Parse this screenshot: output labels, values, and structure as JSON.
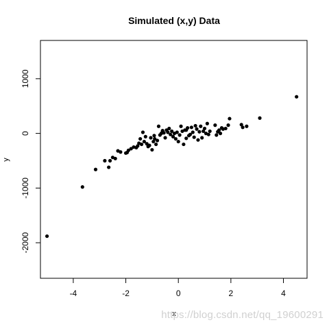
{
  "chart_data": {
    "type": "scatter",
    "title": "Simulated (x,y) Data",
    "xlabel": "x",
    "ylabel": "y",
    "xlim": [
      -5.25,
      4.9
    ],
    "ylim": [
      -2650,
      1700
    ],
    "x_ticks": [
      -4,
      -2,
      0,
      2,
      4
    ],
    "y_ticks": [
      -2000,
      -1000,
      0,
      1000
    ],
    "grid": false,
    "point_color": "#000000",
    "points": [
      [
        -5.0,
        -1880
      ],
      [
        -3.65,
        -980
      ],
      [
        -3.15,
        -660
      ],
      [
        -2.8,
        -500
      ],
      [
        -2.65,
        -620
      ],
      [
        -2.6,
        -500
      ],
      [
        -2.5,
        -440
      ],
      [
        -2.4,
        -460
      ],
      [
        -2.3,
        -320
      ],
      [
        -2.2,
        -340
      ],
      [
        -2.0,
        -360
      ],
      [
        -1.9,
        -310
      ],
      [
        -1.8,
        -280
      ],
      [
        -1.7,
        -250
      ],
      [
        -1.6,
        -260
      ],
      [
        -1.5,
        -180
      ],
      [
        -1.45,
        -100
      ],
      [
        -1.4,
        -200
      ],
      [
        -1.35,
        20
      ],
      [
        -1.3,
        -150
      ],
      [
        -1.25,
        -60
      ],
      [
        -1.2,
        -190
      ],
      [
        -1.15,
        -240
      ],
      [
        -1.1,
        -220
      ],
      [
        -1.05,
        -80
      ],
      [
        -1.0,
        -300
      ],
      [
        -0.95,
        -150
      ],
      [
        -0.92,
        -40
      ],
      [
        -0.9,
        -100
      ],
      [
        -0.85,
        -200
      ],
      [
        -0.8,
        -130
      ],
      [
        -0.75,
        130
      ],
      [
        -0.7,
        -30
      ],
      [
        -0.65,
        0
      ],
      [
        -0.6,
        30
      ],
      [
        -0.55,
        10
      ],
      [
        -0.5,
        -80
      ],
      [
        -0.45,
        60
      ],
      [
        -0.4,
        20
      ],
      [
        -0.35,
        90
      ],
      [
        -0.3,
        -20
      ],
      [
        -0.25,
        40
      ],
      [
        -0.2,
        -60
      ],
      [
        -0.15,
        0
      ],
      [
        -0.1,
        -100
      ],
      [
        -0.05,
        20
      ],
      [
        0.0,
        -150
      ],
      [
        0.05,
        -30
      ],
      [
        0.1,
        130
      ],
      [
        0.15,
        40
      ],
      [
        0.2,
        -200
      ],
      [
        0.25,
        60
      ],
      [
        0.3,
        -90
      ],
      [
        0.35,
        100
      ],
      [
        0.4,
        -40
      ],
      [
        0.45,
        -20
      ],
      [
        0.5,
        110
      ],
      [
        0.55,
        20
      ],
      [
        0.6,
        -70
      ],
      [
        0.65,
        140
      ],
      [
        0.7,
        80
      ],
      [
        0.75,
        -120
      ],
      [
        0.8,
        30
      ],
      [
        0.85,
        130
      ],
      [
        0.9,
        -80
      ],
      [
        0.95,
        40
      ],
      [
        1.0,
        90
      ],
      [
        1.05,
        0
      ],
      [
        1.1,
        180
      ],
      [
        1.15,
        -20
      ],
      [
        1.4,
        150
      ],
      [
        1.45,
        -30
      ],
      [
        1.5,
        30
      ],
      [
        1.55,
        60
      ],
      [
        1.6,
        0
      ],
      [
        1.65,
        100
      ],
      [
        1.7,
        80
      ],
      [
        1.8,
        90
      ],
      [
        1.9,
        150
      ],
      [
        1.95,
        270
      ],
      [
        2.4,
        160
      ],
      [
        2.45,
        110
      ],
      [
        2.6,
        130
      ],
      [
        3.1,
        280
      ],
      [
        4.5,
        670
      ],
      [
        -1.95,
        -350
      ],
      [
        -1.55,
        -230
      ],
      [
        -0.6,
        50
      ],
      [
        0.3,
        60
      ],
      [
        1.2,
        40
      ]
    ]
  },
  "watermark": "https://blog.csdn.net/qq_19600291"
}
